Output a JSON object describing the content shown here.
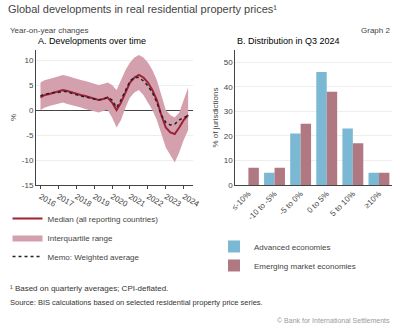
{
  "title": "Global developments in real residential property prices¹",
  "subtitle": "Year-on-year changes",
  "annotations": [
    "Graph 2",
    "¹ Based on quarterly averages; CPI-deflated.",
    "Source: BIS calculations based on selected residential property price series.",
    "© Bank for International Settlements"
  ],
  "chart_data": [
    {
      "type": "line",
      "title": "A. Developments over time",
      "ylabel": "%",
      "x": [
        2016,
        2016.25,
        2016.5,
        2016.75,
        2017,
        2017.25,
        2017.5,
        2017.75,
        2018,
        2018.25,
        2018.5,
        2018.75,
        2019,
        2019.25,
        2019.5,
        2019.75,
        2020,
        2020.25,
        2020.5,
        2020.75,
        2021,
        2021.25,
        2021.5,
        2021.75,
        2022,
        2022.25,
        2022.5,
        2022.75,
        2023,
        2023.25,
        2023.5,
        2023.75,
        2024,
        2024.25
      ],
      "xlim": [
        2015.75,
        2024.5
      ],
      "xticks": [
        2016,
        2017,
        2018,
        2019,
        2020,
        2021,
        2022,
        2023,
        2024
      ],
      "ylim": [
        -15,
        12
      ],
      "yticks": [
        -15,
        -10,
        -5,
        0,
        5,
        10
      ],
      "grid": true,
      "legend": "bottom",
      "series": [
        {
          "name": "Median (all reporting countries)",
          "type": "line",
          "color": "#9b2335",
          "line_style": "solid",
          "values": [
            2.5,
            3.0,
            3.2,
            3.5,
            3.8,
            4.0,
            3.8,
            3.5,
            3.2,
            3.0,
            2.8,
            2.5,
            2.3,
            2.0,
            2.2,
            2.5,
            1.5,
            0.0,
            1.5,
            3.5,
            5.5,
            6.5,
            7.0,
            6.5,
            5.5,
            4.0,
            2.0,
            -1.0,
            -3.5,
            -4.5,
            -4.8,
            -3.5,
            -2.0,
            -1.0
          ]
        },
        {
          "name": "Interquartile range",
          "type": "area",
          "color": "#d4a0ae",
          "lower": [
            0.0,
            0.5,
            0.8,
            1.0,
            1.2,
            1.5,
            1.2,
            1.0,
            0.8,
            0.5,
            0.2,
            0.0,
            -0.2,
            -0.5,
            -0.2,
            0.0,
            -1.5,
            -3.5,
            -2.0,
            0.5,
            2.5,
            3.5,
            4.0,
            3.0,
            1.5,
            0.0,
            -2.0,
            -5.0,
            -7.5,
            -9.0,
            -10.5,
            -8.5,
            -6.0,
            -4.0
          ],
          "upper": [
            5.5,
            6.0,
            6.2,
            6.5,
            6.8,
            7.0,
            6.8,
            6.5,
            6.2,
            6.0,
            5.8,
            5.5,
            5.3,
            5.0,
            5.2,
            5.5,
            5.0,
            4.0,
            6.0,
            8.0,
            9.5,
            10.5,
            11.0,
            10.5,
            9.5,
            8.0,
            6.0,
            3.0,
            0.0,
            -1.0,
            -1.5,
            -0.5,
            2.0,
            4.5
          ]
        },
        {
          "name": "Memo: Weighted average",
          "type": "line",
          "color": "#222222",
          "line_style": "dotted",
          "values": [
            2.8,
            3.2,
            3.3,
            3.5,
            3.5,
            3.8,
            3.6,
            3.3,
            3.0,
            2.8,
            2.6,
            2.4,
            2.2,
            2.0,
            2.2,
            2.5,
            2.0,
            0.5,
            2.0,
            4.0,
            5.8,
            6.5,
            6.5,
            5.8,
            4.8,
            3.5,
            1.5,
            -1.0,
            -2.5,
            -3.0,
            -2.8,
            -2.0,
            -1.5,
            -1.2
          ]
        }
      ]
    },
    {
      "type": "bar",
      "title": "B. Distribution in Q3 2024",
      "ylabel": "% of jurisdictions",
      "categories": [
        "≤-10%",
        "-10 to -5%",
        "-5 to 0%",
        "0 to 5%",
        "5 to 10%",
        "≥10%"
      ],
      "ylim": [
        0,
        55
      ],
      "yticks": [
        0,
        10,
        20,
        30,
        40,
        50
      ],
      "grid": true,
      "legend": "bottom",
      "series": [
        {
          "name": "Advanced economies",
          "color": "#7ab8d4",
          "values": [
            0,
            5,
            21,
            46,
            23,
            5
          ]
        },
        {
          "name": "Emerging market economies",
          "color": "#b07880",
          "values": [
            7,
            7,
            25,
            38,
            17,
            5
          ]
        }
      ]
    }
  ]
}
